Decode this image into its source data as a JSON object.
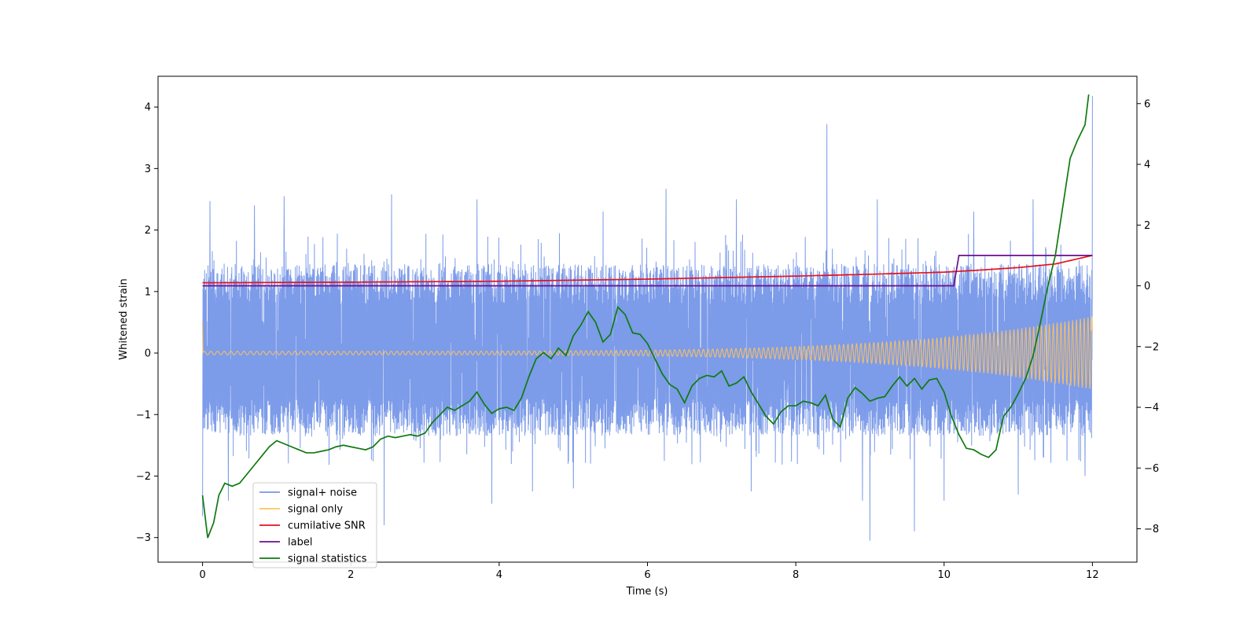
{
  "chart_data": {
    "type": "line",
    "title": "",
    "xlabel": "Time (s)",
    "ylabel": "Whitened strain",
    "y2label": "",
    "xlim": [
      -0.6,
      12.6
    ],
    "ylim": [
      -3.4,
      4.5
    ],
    "y2lim": [
      -9.1,
      6.9
    ],
    "xticks": [
      0,
      2,
      4,
      6,
      8,
      10,
      12
    ],
    "yticks": [
      -3,
      -2,
      -1,
      0,
      1,
      2,
      3,
      4
    ],
    "y2ticks": [
      -8,
      -6,
      -4,
      -2,
      0,
      2,
      4,
      6
    ],
    "grid": false,
    "legend_position": "lower-left",
    "colors": {
      "noise": "#7596e8",
      "signal": "#ffc25c",
      "snr": "#e8111d",
      "label": "#6a0f8a",
      "stat": "#0f7a0f"
    },
    "series": [
      {
        "name": "signal+ noise",
        "axis": "left",
        "description": "dense whitened strain trace, roughly -2.4 to 2.5 with outliers",
        "envelope": {
          "x_start": 0,
          "x_end": 12,
          "typical_low": -1.35,
          "typical_high": 1.45
        },
        "spikes_up": [
          [
            0.1,
            2.47
          ],
          [
            0.7,
            2.4
          ],
          [
            1.1,
            2.55
          ],
          [
            2.55,
            2.58
          ],
          [
            3.7,
            2.5
          ],
          [
            5.4,
            2.3
          ],
          [
            6.25,
            2.67
          ],
          [
            7.2,
            2.5
          ],
          [
            8.42,
            3.72
          ],
          [
            9.1,
            2.5
          ],
          [
            10.4,
            2.3
          ],
          [
            11.2,
            2.5
          ],
          [
            12.0,
            4.18
          ]
        ],
        "spikes_down": [
          [
            0.0,
            -2.65
          ],
          [
            0.35,
            -2.4
          ],
          [
            2.45,
            -2.8
          ],
          [
            3.9,
            -2.45
          ],
          [
            4.45,
            -2.25
          ],
          [
            5.0,
            -2.2
          ],
          [
            7.4,
            -2.25
          ],
          [
            8.9,
            -2.4
          ],
          [
            9.0,
            -3.05
          ],
          [
            9.6,
            -2.9
          ],
          [
            10.0,
            -2.4
          ],
          [
            11.0,
            -2.3
          ],
          [
            11.9,
            -2.0
          ]
        ]
      },
      {
        "name": "signal only",
        "axis": "left",
        "description": "chirp with growing amplitude",
        "start_amplitude": 0.03,
        "end_amplitude": 0.6,
        "x_start": 0,
        "x_end": 12
      },
      {
        "name": "cumilative SNR",
        "axis": "right",
        "x": [
          0,
          2,
          4,
          6,
          8,
          9,
          10,
          10.5,
          11,
          11.5,
          12
        ],
        "values": [
          0.1,
          0.12,
          0.15,
          0.22,
          0.32,
          0.38,
          0.45,
          0.52,
          0.6,
          0.72,
          1.0
        ]
      },
      {
        "name": "label",
        "axis": "right",
        "x": [
          0,
          10.13,
          10.2,
          12
        ],
        "values": [
          0,
          0,
          1,
          1
        ]
      },
      {
        "name": "signal statistics",
        "axis": "right",
        "x": [
          0.0,
          0.07,
          0.15,
          0.22,
          0.3,
          0.4,
          0.5,
          0.6,
          0.7,
          0.8,
          0.9,
          1.0,
          1.1,
          1.2,
          1.3,
          1.4,
          1.5,
          1.6,
          1.7,
          1.8,
          1.9,
          2.0,
          2.1,
          2.2,
          2.3,
          2.4,
          2.5,
          2.6,
          2.7,
          2.8,
          2.9,
          3.0,
          3.1,
          3.2,
          3.3,
          3.4,
          3.5,
          3.6,
          3.7,
          3.8,
          3.9,
          4.0,
          4.1,
          4.2,
          4.3,
          4.4,
          4.5,
          4.6,
          4.7,
          4.8,
          4.9,
          5.0,
          5.1,
          5.2,
          5.3,
          5.4,
          5.5,
          5.6,
          5.7,
          5.8,
          5.9,
          6.0,
          6.1,
          6.2,
          6.3,
          6.4,
          6.5,
          6.6,
          6.7,
          6.8,
          6.9,
          7.0,
          7.1,
          7.2,
          7.3,
          7.4,
          7.5,
          7.6,
          7.7,
          7.8,
          7.9,
          8.0,
          8.1,
          8.2,
          8.3,
          8.4,
          8.5,
          8.6,
          8.7,
          8.8,
          8.9,
          9.0,
          9.1,
          9.2,
          9.3,
          9.4,
          9.5,
          9.6,
          9.7,
          9.8,
          9.9,
          10.0,
          10.1,
          10.2,
          10.3,
          10.4,
          10.5,
          10.6,
          10.7,
          10.8,
          10.9,
          11.0,
          11.1,
          11.2,
          11.3,
          11.4,
          11.5,
          11.6,
          11.7,
          11.8,
          11.9,
          11.95
        ],
        "values": [
          -6.9,
          -8.3,
          -7.8,
          -6.9,
          -6.5,
          -6.6,
          -6.5,
          -6.2,
          -5.9,
          -5.6,
          -5.3,
          -5.1,
          -5.2,
          -5.3,
          -5.4,
          -5.5,
          -5.5,
          -5.45,
          -5.4,
          -5.3,
          -5.25,
          -5.3,
          -5.35,
          -5.4,
          -5.3,
          -5.05,
          -4.95,
          -5.0,
          -4.95,
          -4.9,
          -4.95,
          -4.85,
          -4.5,
          -4.25,
          -4.0,
          -4.1,
          -3.95,
          -3.8,
          -3.5,
          -3.9,
          -4.2,
          -4.05,
          -4.0,
          -4.1,
          -3.7,
          -3.0,
          -2.4,
          -2.2,
          -2.4,
          -2.05,
          -2.3,
          -1.65,
          -1.3,
          -0.85,
          -1.2,
          -1.85,
          -1.6,
          -0.7,
          -0.95,
          -1.55,
          -1.6,
          -1.9,
          -2.4,
          -2.9,
          -3.25,
          -3.4,
          -3.85,
          -3.3,
          -3.05,
          -2.95,
          -3.0,
          -2.8,
          -3.3,
          -3.2,
          -3.0,
          -3.5,
          -3.9,
          -4.3,
          -4.55,
          -4.15,
          -3.95,
          -3.95,
          -3.8,
          -3.85,
          -3.95,
          -3.6,
          -4.4,
          -4.65,
          -3.7,
          -3.35,
          -3.55,
          -3.8,
          -3.7,
          -3.65,
          -3.3,
          -3.0,
          -3.3,
          -3.05,
          -3.4,
          -3.1,
          -3.05,
          -3.5,
          -4.3,
          -4.9,
          -5.35,
          -5.4,
          -5.55,
          -5.65,
          -5.4,
          -4.3,
          -4.0,
          -3.55,
          -3.05,
          -2.3,
          -1.2,
          0.0,
          1.0,
          2.6,
          4.2,
          4.8,
          5.3,
          6.3
        ]
      }
    ]
  }
}
